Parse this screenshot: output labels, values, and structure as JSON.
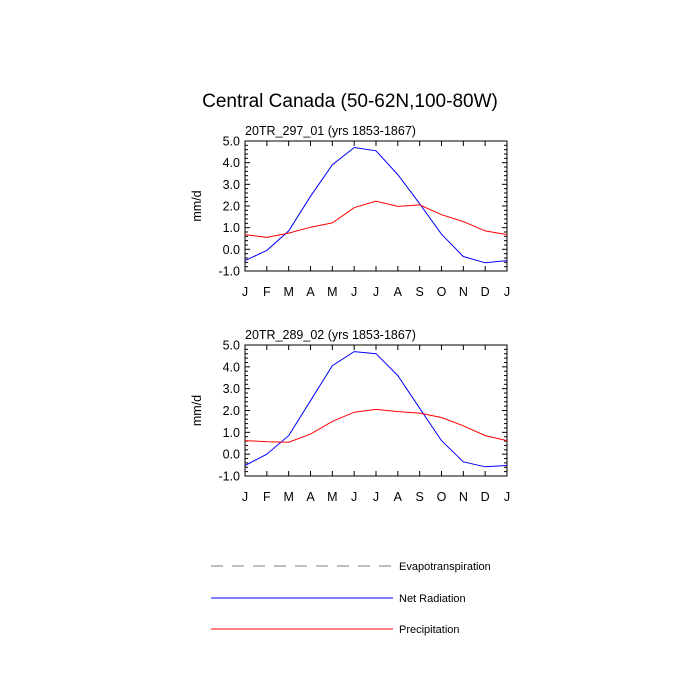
{
  "figure": {
    "title": "Central Canada (50-62N,100-80W)"
  },
  "chart_data": [
    {
      "type": "line",
      "subtitle": "20TR_297_01 (yrs 1853-1867)",
      "ylabel": "mm/d",
      "xlabel": "",
      "x_ticklabels": [
        "J",
        "F",
        "M",
        "A",
        "M",
        "J",
        "J",
        "A",
        "S",
        "O",
        "N",
        "D",
        "J"
      ],
      "y_ticklabels": [
        "5.0",
        "4.0",
        "3.0",
        "2.0",
        "1.0",
        "0.0",
        "-1.0"
      ],
      "ylim": [
        -1.0,
        5.0
      ],
      "grid": false,
      "series": [
        {
          "name": "Net Radiation",
          "color": "#0000ff",
          "values": [
            -0.52,
            -0.05,
            0.85,
            2.45,
            3.9,
            4.7,
            4.55,
            3.45,
            2.1,
            0.7,
            -0.33,
            -0.62,
            -0.52
          ]
        },
        {
          "name": "Precipitation",
          "color": "#ff0000",
          "values": [
            0.68,
            0.55,
            0.75,
            1.02,
            1.22,
            1.92,
            2.22,
            1.98,
            2.05,
            1.6,
            1.28,
            0.85,
            0.68
          ]
        }
      ]
    },
    {
      "type": "line",
      "subtitle": "20TR_289_02 (yrs 1853-1867)",
      "ylabel": "mm/d",
      "xlabel": "",
      "x_ticklabels": [
        "J",
        "F",
        "M",
        "A",
        "M",
        "J",
        "J",
        "A",
        "S",
        "O",
        "N",
        "D",
        "J"
      ],
      "y_ticklabels": [
        "5.0",
        "4.0",
        "3.0",
        "2.0",
        "1.0",
        "0.0",
        "-1.0"
      ],
      "ylim": [
        -1.0,
        5.0
      ],
      "grid": false,
      "series": [
        {
          "name": "Net Radiation",
          "color": "#0000ff",
          "values": [
            -0.52,
            0.0,
            0.85,
            2.45,
            4.05,
            4.7,
            4.6,
            3.6,
            2.1,
            0.62,
            -0.35,
            -0.58,
            -0.52
          ]
        },
        {
          "name": "Precipitation",
          "color": "#ff0000",
          "values": [
            0.62,
            0.57,
            0.55,
            0.92,
            1.5,
            1.92,
            2.05,
            1.95,
            1.88,
            1.68,
            1.3,
            0.85,
            0.62
          ]
        }
      ]
    }
  ],
  "legend": {
    "placement": "bottom",
    "entries": [
      {
        "label": "Evapotranspiration",
        "color": "#808080",
        "style": "dashed"
      },
      {
        "label": "Net Radiation",
        "color": "#0000ff",
        "style": "solid"
      },
      {
        "label": "Precipitation",
        "color": "#ff0000",
        "style": "solid"
      }
    ]
  }
}
